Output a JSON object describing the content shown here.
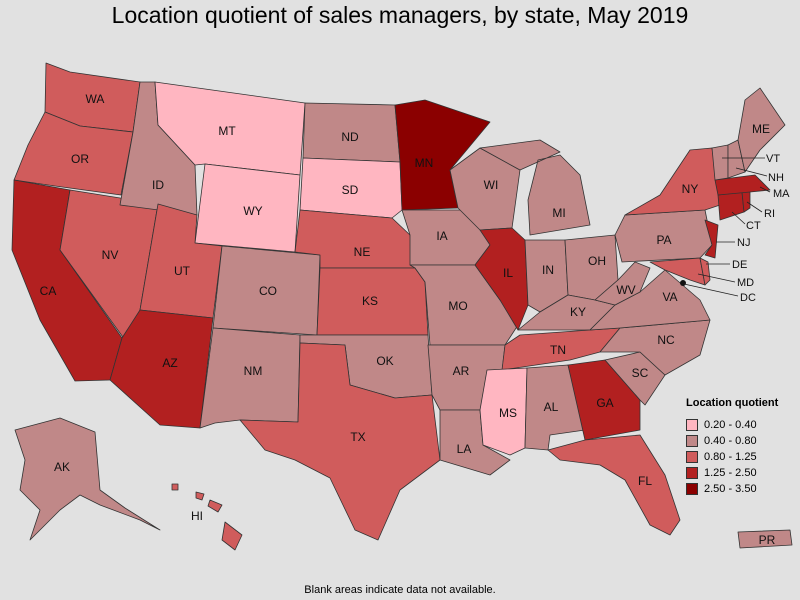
{
  "title": "Location quotient of sales managers, by state, May 2019",
  "note": "Blank areas indicate data not available.",
  "colors": {
    "c1": "#ffb6c1",
    "c2": "#c08888",
    "c3": "#d05c5c",
    "c4": "#b22020",
    "c5": "#8b0000",
    "background": "#e1e1e1"
  },
  "legend": {
    "title": "Location quotient",
    "items": [
      {
        "label": "0.20 - 0.40",
        "color": "#ffb6c1"
      },
      {
        "label": "0.40 - 0.80",
        "color": "#c08888"
      },
      {
        "label": "0.80 - 1.25",
        "color": "#d05c5c"
      },
      {
        "label": "1.25 - 2.50",
        "color": "#b22020"
      },
      {
        "label": "2.50 - 3.50",
        "color": "#8b0000"
      }
    ]
  },
  "states": {
    "WA": "WA",
    "OR": "OR",
    "CA": "CA",
    "NV": "NV",
    "ID": "ID",
    "MT": "MT",
    "WY": "WY",
    "UT": "UT",
    "AZ": "AZ",
    "CO": "CO",
    "NM": "NM",
    "ND": "ND",
    "SD": "SD",
    "NE": "NE",
    "KS": "KS",
    "OK": "OK",
    "TX": "TX",
    "MN": "MN",
    "IA": "IA",
    "MO": "MO",
    "AR": "AR",
    "LA": "LA",
    "WI": "WI",
    "IL": "IL",
    "MI": "MI",
    "IN": "IN",
    "OH": "OH",
    "KY": "KY",
    "TN": "TN",
    "MS": "MS",
    "AL": "AL",
    "GA": "GA",
    "FL": "FL",
    "SC": "SC",
    "NC": "NC",
    "VA": "VA",
    "WV": "WV",
    "PA": "PA",
    "NY": "NY",
    "ME": "ME",
    "VT": "VT",
    "NH": "NH",
    "MA": "MA",
    "RI": "RI",
    "CT": "CT",
    "NJ": "NJ",
    "DE": "DE",
    "MD": "MD",
    "DC": "DC",
    "AK": "AK",
    "HI": "HI",
    "PR": "PR"
  }
}
